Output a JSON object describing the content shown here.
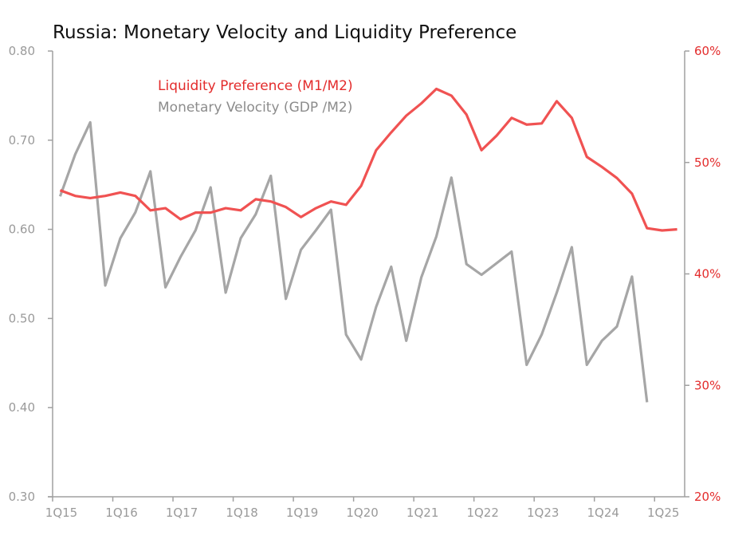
{
  "chart_data": {
    "type": "line",
    "title": "Russia: Monetary Velocity and Liquidity Preference",
    "x": [
      "1Q15",
      "2Q15",
      "3Q15",
      "4Q15",
      "1Q16",
      "2Q16",
      "3Q16",
      "4Q16",
      "1Q17",
      "2Q17",
      "3Q17",
      "4Q17",
      "1Q18",
      "2Q18",
      "3Q18",
      "4Q18",
      "1Q19",
      "2Q19",
      "3Q19",
      "4Q19",
      "1Q20",
      "2Q20",
      "3Q20",
      "4Q20",
      "1Q21",
      "2Q21",
      "3Q21",
      "4Q21",
      "1Q22",
      "2Q22",
      "3Q22",
      "4Q22",
      "1Q23",
      "2Q23",
      "3Q23",
      "4Q23",
      "1Q24",
      "2Q24",
      "3Q24",
      "4Q24",
      "1Q25",
      "2Q25"
    ],
    "x_tick_labels": [
      "1Q15",
      "1Q16",
      "1Q17",
      "1Q18",
      "1Q19",
      "1Q20",
      "1Q21",
      "1Q22",
      "1Q23",
      "1Q24",
      "1Q25"
    ],
    "y_left": {
      "ylim": [
        0.3,
        0.8
      ],
      "ticks": [
        "0.30",
        "0.40",
        "0.50",
        "0.60",
        "0.70",
        "0.80"
      ]
    },
    "y_right": {
      "ylim": [
        20,
        60
      ],
      "ticks": [
        "20%",
        "30%",
        "40%",
        "50%",
        "60%"
      ]
    },
    "grid": false,
    "legend_placement": "top-left",
    "series": [
      {
        "name": "Liquidity Preference (M1/M2)",
        "axis": "right",
        "color": "#f05252",
        "label_color": "#e32b2b",
        "values": [
          47.5,
          47.0,
          46.8,
          47.0,
          47.3,
          47.0,
          45.7,
          45.9,
          44.9,
          45.5,
          45.5,
          45.9,
          45.7,
          46.7,
          46.5,
          46.0,
          45.1,
          45.9,
          46.5,
          46.2,
          47.9,
          51.1,
          52.7,
          54.2,
          55.3,
          56.6,
          56.0,
          54.3,
          51.1,
          52.4,
          54.0,
          53.4,
          53.5,
          55.5,
          54.0,
          50.5,
          49.6,
          48.6,
          47.2,
          44.1,
          43.9,
          44.0
        ]
      },
      {
        "name": "Monetary Velocity (GDP /M2)",
        "axis": "left",
        "color": "#a6a6a6",
        "label_color": "#8c8c8c",
        "values": [
          0.637,
          0.684,
          0.72,
          0.537,
          0.59,
          0.619,
          0.665,
          0.535,
          0.569,
          0.599,
          0.647,
          0.529,
          0.59,
          0.617,
          0.66,
          0.522,
          0.577,
          0.599,
          0.622,
          0.482,
          0.454,
          0.513,
          0.558,
          0.475,
          0.546,
          0.592,
          0.658,
          0.561,
          0.549,
          0.562,
          0.575,
          0.448,
          0.482,
          0.529,
          0.58,
          0.448,
          0.475,
          0.491,
          0.547,
          0.406,
          null,
          null
        ]
      }
    ]
  }
}
